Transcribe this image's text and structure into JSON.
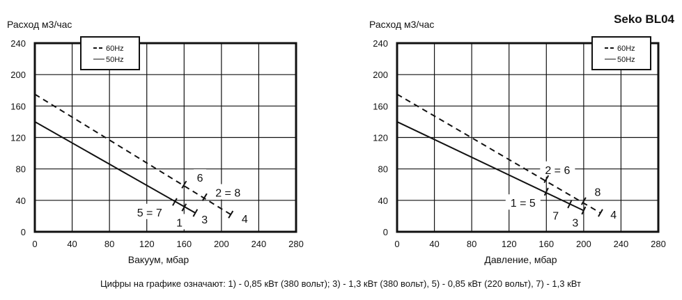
{
  "title": "Seko BL04",
  "caption": "Цифры на графике означают: 1) - 0,85 кВт (380 вольт);  3) - 1,3 кВт (380 вольт), 5) - 0,85 кВт (220 вольт), 7) - 1,3 кВт",
  "colors": {
    "lines": "#111111",
    "background": "#ffffff"
  },
  "chart_data": [
    {
      "type": "line",
      "ylabel": "Расход м3/час",
      "xlabel": "Вакуум, мбар",
      "xlim": [
        0,
        280
      ],
      "ylim": [
        0,
        240
      ],
      "xticks": [
        0,
        40,
        80,
        120,
        160,
        200,
        240,
        280
      ],
      "yticks": [
        0,
        40,
        80,
        120,
        160,
        200,
        240
      ],
      "grid": true,
      "legend": {
        "placement": "top-left",
        "entries": [
          "60Hz",
          "50Hz"
        ]
      },
      "series": [
        {
          "name": "60Hz",
          "style": "dashed",
          "points": [
            [
              0,
              175
            ],
            [
              210,
              22
            ]
          ],
          "markers": [
            [
              160,
              60
            ],
            [
              182,
              44
            ],
            [
              210,
              22
            ]
          ]
        },
        {
          "name": "50Hz",
          "style": "solid",
          "points": [
            [
              0,
              140
            ],
            [
              172,
              24
            ]
          ],
          "markers": [
            [
              150,
              38
            ],
            [
              160,
              31
            ],
            [
              172,
              24
            ]
          ]
        }
      ],
      "annotations": [
        {
          "text": "6",
          "x": 177,
          "y": 69
        },
        {
          "text": "2 = 8",
          "x": 207,
          "y": 50
        },
        {
          "text": "5 = 7",
          "x": 123,
          "y": 25
        },
        {
          "text": "1",
          "x": 155,
          "y": 12
        },
        {
          "text": "3",
          "x": 182,
          "y": 16
        },
        {
          "text": "4",
          "x": 225,
          "y": 17
        }
      ]
    },
    {
      "type": "line",
      "ylabel": "Расход м3/час",
      "xlabel": "Давление, мбар",
      "xlim": [
        0,
        280
      ],
      "ylim": [
        0,
        240
      ],
      "xticks": [
        0,
        40,
        80,
        120,
        160,
        200,
        240,
        280
      ],
      "yticks": [
        0,
        40,
        80,
        120,
        160,
        200,
        240
      ],
      "grid": true,
      "legend": {
        "placement": "top-right",
        "entries": [
          "60Hz",
          "50Hz"
        ]
      },
      "series": [
        {
          "name": "60Hz",
          "style": "dashed",
          "points": [
            [
              0,
              175
            ],
            [
              218,
              24
            ]
          ],
          "markers": [
            [
              160,
              67
            ],
            [
              200,
              39
            ],
            [
              218,
              24
            ]
          ]
        },
        {
          "name": "50Hz",
          "style": "solid",
          "points": [
            [
              0,
              140
            ],
            [
              200,
              27
            ]
          ],
          "markers": [
            [
              160,
              51
            ],
            [
              185,
              35
            ],
            [
              200,
              27
            ]
          ]
        }
      ],
      "annotations": [
        {
          "text": "2 = 6",
          "x": 172,
          "y": 79
        },
        {
          "text": "8",
          "x": 215,
          "y": 51
        },
        {
          "text": "1 = 5",
          "x": 135,
          "y": 37
        },
        {
          "text": "7",
          "x": 170,
          "y": 21
        },
        {
          "text": "3",
          "x": 191,
          "y": 12
        },
        {
          "text": "4",
          "x": 232,
          "y": 22
        }
      ]
    }
  ]
}
